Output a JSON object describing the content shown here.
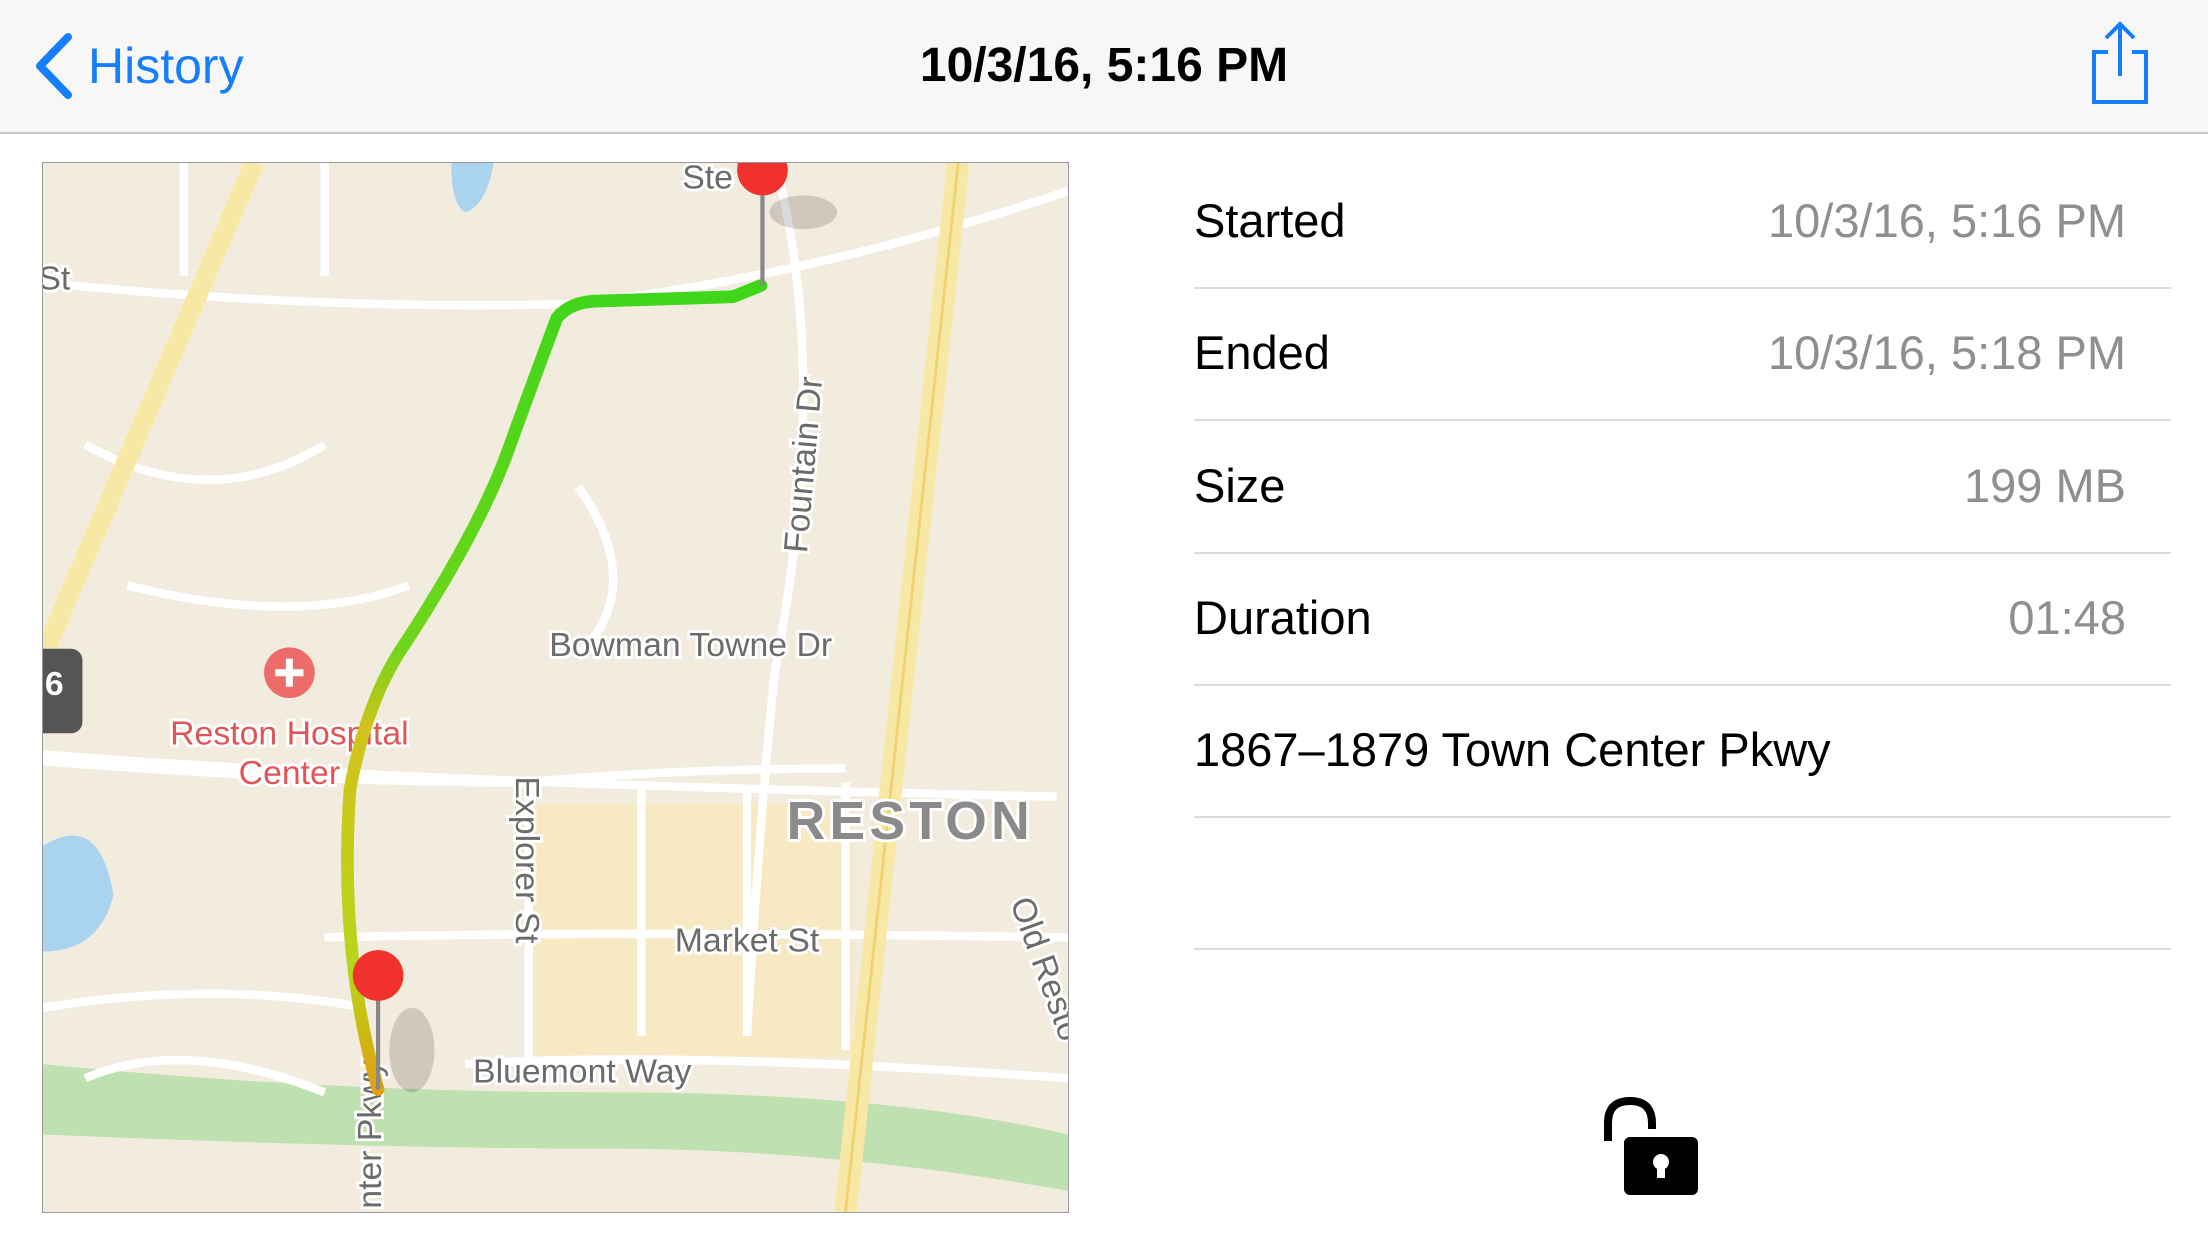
{
  "nav": {
    "back": "History",
    "title": "10/3/16, 5:16 PM"
  },
  "details": {
    "rows": [
      {
        "label": "Started",
        "value": "10/3/16, 5:16 PM"
      },
      {
        "label": "Ended",
        "value": "10/3/16, 5:18 PM"
      },
      {
        "label": "Size",
        "value": "199 MB"
      },
      {
        "label": "Duration",
        "value": "01:48"
      }
    ],
    "address": "1867–1879 Town Center Pkwy"
  },
  "map": {
    "labels": [
      "Ste",
      "St",
      "Fountain Dr",
      "Bowman Towne Dr",
      "Reston Hospital",
      "Center",
      "Explorer St",
      "RESTON",
      "Market St",
      "Bluemont Way",
      "Old Resto",
      "nter Pkwy",
      "6"
    ]
  }
}
